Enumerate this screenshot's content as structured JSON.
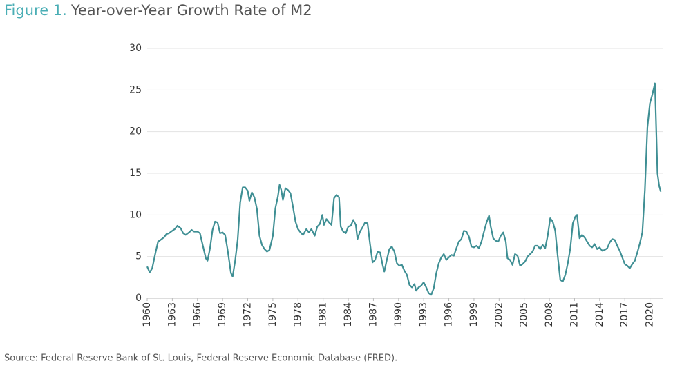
{
  "chart_data": {
    "type": "line",
    "figure_label": "Figure 1.",
    "title": "Year-over-Year Growth Rate of M2",
    "source": "Source: Federal Reserve Bank of St. Louis, Federal Reserve Economic Database (FRED).",
    "color": "#3f8f94",
    "grid": true,
    "xlim": [
      1960,
      2021.6
    ],
    "ylim": [
      0,
      30
    ],
    "yticks": [
      0,
      5,
      10,
      15,
      20,
      25,
      30
    ],
    "xticks": [
      1960,
      1963,
      1966,
      1969,
      1972,
      1975,
      1978,
      1981,
      1984,
      1987,
      1990,
      1993,
      1996,
      1999,
      2002,
      2005,
      2008,
      2011,
      2014,
      2017,
      2020
    ],
    "x": [
      1960.0,
      1960.3,
      1960.6,
      1961.0,
      1961.3,
      1961.6,
      1962.0,
      1962.3,
      1962.6,
      1963.0,
      1963.3,
      1963.6,
      1964.0,
      1964.3,
      1964.6,
      1965.0,
      1965.3,
      1965.6,
      1966.0,
      1966.3,
      1966.6,
      1967.0,
      1967.2,
      1967.5,
      1967.8,
      1968.1,
      1968.4,
      1968.7,
      1969.0,
      1969.3,
      1969.6,
      1970.0,
      1970.2,
      1970.5,
      1970.8,
      1971.1,
      1971.4,
      1971.7,
      1972.0,
      1972.2,
      1972.5,
      1972.8,
      1973.1,
      1973.4,
      1973.7,
      1974.0,
      1974.3,
      1974.6,
      1975.0,
      1975.3,
      1975.6,
      1975.8,
      1976.0,
      1976.2,
      1976.5,
      1976.8,
      1977.1,
      1977.4,
      1977.7,
      1978.0,
      1978.3,
      1978.6,
      1979.0,
      1979.3,
      1979.6,
      1980.0,
      1980.3,
      1980.6,
      1980.9,
      1981.1,
      1981.4,
      1981.7,
      1982.0,
      1982.3,
      1982.6,
      1982.9,
      1983.1,
      1983.4,
      1983.7,
      1984.0,
      1984.3,
      1984.6,
      1984.9,
      1985.1,
      1985.4,
      1985.7,
      1986.0,
      1986.3,
      1986.6,
      1986.9,
      1987.2,
      1987.5,
      1987.8,
      1988.1,
      1988.3,
      1988.6,
      1988.9,
      1989.2,
      1989.5,
      1989.8,
      1990.1,
      1990.4,
      1990.7,
      1991.0,
      1991.3,
      1991.6,
      1991.9,
      1992.1,
      1992.4,
      1992.7,
      1993.0,
      1993.3,
      1993.6,
      1993.9,
      1994.2,
      1994.5,
      1994.8,
      1995.1,
      1995.4,
      1995.7,
      1996.0,
      1996.3,
      1996.6,
      1996.9,
      1997.2,
      1997.5,
      1997.8,
      1998.1,
      1998.4,
      1998.7,
      1999.0,
      1999.3,
      1999.6,
      1999.9,
      2000.2,
      2000.5,
      2000.8,
      2001.0,
      2001.3,
      2001.6,
      2001.9,
      2002.2,
      2002.5,
      2002.8,
      2003.0,
      2003.3,
      2003.6,
      2003.9,
      2004.2,
      2004.5,
      2004.8,
      2005.1,
      2005.4,
      2005.7,
      2006.0,
      2006.3,
      2006.6,
      2006.9,
      2007.2,
      2007.5,
      2007.8,
      2008.1,
      2008.4,
      2008.7,
      2009.0,
      2009.3,
      2009.6,
      2009.9,
      2010.2,
      2010.5,
      2010.8,
      2011.1,
      2011.3,
      2011.6,
      2011.9,
      2012.2,
      2012.5,
      2012.8,
      2013.1,
      2013.4,
      2013.7,
      2014.0,
      2014.3,
      2014.6,
      2014.9,
      2015.2,
      2015.5,
      2015.8,
      2016.1,
      2016.4,
      2016.7,
      2017.0,
      2017.3,
      2017.6,
      2017.9,
      2018.2,
      2018.5,
      2018.8,
      2019.1,
      2019.4,
      2019.7,
      2020.0,
      2020.3,
      2020.6,
      2020.9,
      2021.1,
      2021.3
    ],
    "values": [
      3.8,
      3.1,
      3.6,
      5.5,
      6.8,
      7.0,
      7.3,
      7.7,
      7.8,
      8.1,
      8.3,
      8.7,
      8.4,
      7.8,
      7.6,
      7.9,
      8.2,
      8.0,
      8.0,
      7.8,
      6.5,
      4.8,
      4.5,
      6.0,
      8.2,
      9.2,
      9.1,
      7.8,
      7.9,
      7.6,
      5.8,
      3.0,
      2.6,
      4.5,
      7.0,
      11.5,
      13.3,
      13.3,
      12.9,
      11.7,
      12.7,
      12.1,
      10.7,
      7.5,
      6.4,
      5.9,
      5.6,
      5.8,
      7.5,
      10.8,
      12.2,
      13.6,
      13.0,
      11.8,
      13.2,
      13.0,
      12.6,
      11.0,
      9.2,
      8.3,
      7.9,
      7.6,
      8.3,
      7.9,
      8.3,
      7.5,
      8.6,
      8.9,
      10.0,
      8.8,
      9.5,
      9.1,
      8.8,
      12.0,
      12.4,
      12.1,
      8.6,
      8.0,
      7.8,
      8.6,
      8.7,
      9.4,
      8.8,
      7.1,
      8.0,
      8.5,
      9.1,
      9.0,
      6.5,
      4.3,
      4.6,
      5.6,
      5.5,
      4.0,
      3.2,
      4.6,
      5.9,
      6.2,
      5.6,
      4.2,
      3.9,
      4.0,
      3.3,
      2.8,
      1.6,
      1.3,
      1.7,
      0.9,
      1.3,
      1.5,
      1.9,
      1.3,
      0.6,
      0.4,
      1.2,
      3.0,
      4.2,
      4.9,
      5.3,
      4.6,
      4.9,
      5.2,
      5.1,
      6.0,
      6.8,
      7.1,
      8.1,
      8.0,
      7.4,
      6.2,
      6.1,
      6.3,
      6.0,
      6.8,
      8.0,
      9.1,
      9.9,
      8.6,
      7.2,
      6.9,
      6.8,
      7.5,
      7.9,
      6.8,
      4.8,
      4.6,
      4.0,
      5.3,
      5.1,
      3.9,
      4.1,
      4.4,
      5.0,
      5.3,
      5.6,
      6.3,
      6.3,
      5.9,
      6.4,
      6.0,
      7.5,
      9.6,
      9.2,
      8.1,
      5.0,
      2.2,
      2.0,
      2.8,
      4.2,
      6.0,
      9.0,
      9.8,
      10.0,
      7.2,
      7.6,
      7.3,
      6.8,
      6.3,
      6.1,
      6.5,
      5.9,
      6.1,
      5.7,
      5.8,
      6.0,
      6.7,
      7.1,
      7.0,
      6.3,
      5.7,
      4.9,
      4.1,
      3.9,
      3.6,
      4.1,
      4.5,
      5.5,
      6.6,
      7.9,
      13.0,
      20.5,
      23.4,
      24.5,
      25.8,
      15.0,
      13.5,
      12.8
    ]
  }
}
